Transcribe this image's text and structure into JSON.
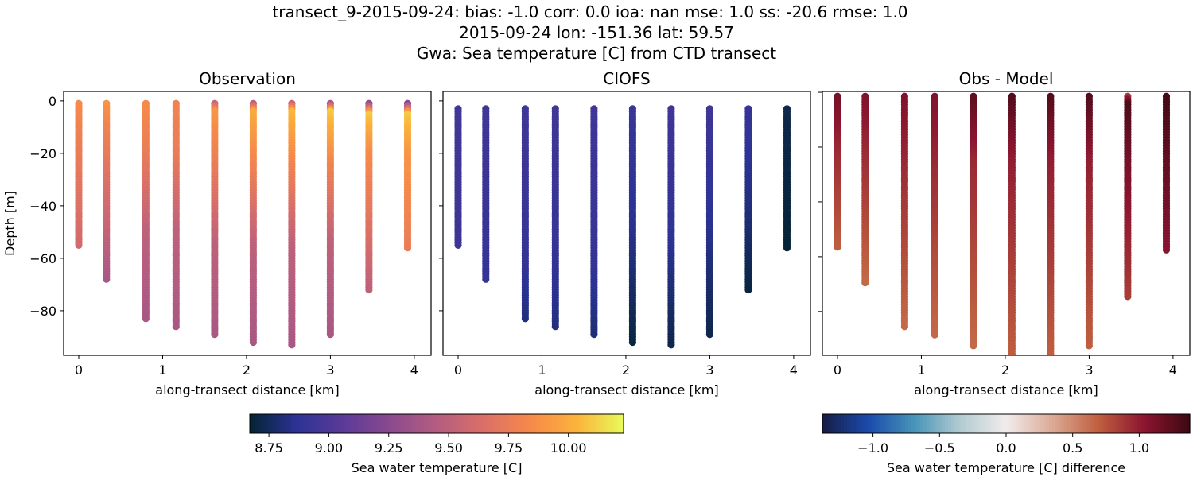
{
  "suptitle": [
    "transect_9-2015-09-24: bias: -1.0  corr: 0.0  ioa: nan  mse: 1.0  ss: -20.6  rmse: 1.0",
    "2015-09-24 lon: -151.36 lat: 59.57",
    "Gwa: Sea temperature [C] from CTD transect"
  ],
  "chart_data": [
    {
      "type": "scatter",
      "title": "Observation",
      "xlabel": "along-transect distance [km]",
      "ylabel": "Depth [m]",
      "xlim": [
        -0.18,
        4.2
      ],
      "ylim": [
        -97,
        3.6
      ],
      "xticks": [
        0,
        1,
        2,
        3,
        4
      ],
      "yticks": [
        0,
        -20,
        -40,
        -60,
        -80
      ],
      "colormap": "thermal",
      "stations": [
        {
          "x": 0.0,
          "top": -1,
          "bottom": -55,
          "profile": [
            [
              0,
              9.85
            ],
            [
              10,
              9.8
            ],
            [
              55,
              9.6
            ]
          ]
        },
        {
          "x": 0.33,
          "top": -1,
          "bottom": -68,
          "profile": [
            [
              0,
              9.9
            ],
            [
              10,
              9.8
            ],
            [
              40,
              9.6
            ],
            [
              68,
              9.4
            ]
          ]
        },
        {
          "x": 0.8,
          "top": -1,
          "bottom": -83,
          "profile": [
            [
              0,
              9.85
            ],
            [
              20,
              9.75
            ],
            [
              50,
              9.5
            ],
            [
              83,
              9.4
            ]
          ]
        },
        {
          "x": 1.16,
          "top": -1,
          "bottom": -86,
          "profile": [
            [
              0,
              9.8
            ],
            [
              20,
              9.75
            ],
            [
              50,
              9.5
            ],
            [
              86,
              9.4
            ]
          ]
        },
        {
          "x": 1.62,
          "top": -1,
          "bottom": -89,
          "profile": [
            [
              0,
              9.45
            ],
            [
              4,
              9.9
            ],
            [
              25,
              9.75
            ],
            [
              55,
              9.5
            ],
            [
              89,
              9.4
            ]
          ]
        },
        {
          "x": 2.08,
          "top": -1,
          "bottom": -92,
          "profile": [
            [
              0,
              9.35
            ],
            [
              4,
              10.0
            ],
            [
              25,
              9.8
            ],
            [
              55,
              9.5
            ],
            [
              92,
              9.4
            ]
          ]
        },
        {
          "x": 2.54,
          "top": -1,
          "bottom": -93,
          "profile": [
            [
              0,
              9.4
            ],
            [
              4,
              10.05
            ],
            [
              25,
              9.8
            ],
            [
              55,
              9.5
            ],
            [
              93,
              9.4
            ]
          ]
        },
        {
          "x": 3.0,
          "top": -1,
          "bottom": -89,
          "profile": [
            [
              0,
              9.2
            ],
            [
              4,
              10.1
            ],
            [
              25,
              9.8
            ],
            [
              55,
              9.5
            ],
            [
              89,
              9.4
            ]
          ]
        },
        {
          "x": 3.46,
          "top": -1,
          "bottom": -72,
          "profile": [
            [
              0,
              9.1
            ],
            [
              5,
              10.1
            ],
            [
              20,
              9.85
            ],
            [
              45,
              9.7
            ],
            [
              72,
              9.5
            ]
          ]
        },
        {
          "x": 3.92,
          "top": -1,
          "bottom": -56,
          "profile": [
            [
              0,
              9.05
            ],
            [
              5,
              10.1
            ],
            [
              20,
              9.9
            ],
            [
              56,
              9.75
            ]
          ]
        }
      ]
    },
    {
      "type": "scatter",
      "title": "CIOFS",
      "xlabel": "along-transect distance [km]",
      "xlim": [
        -0.18,
        4.2
      ],
      "ylim": [
        -97,
        3.6
      ],
      "xticks": [
        0,
        1,
        2,
        3,
        4
      ],
      "colormap": "thermal",
      "stations": [
        {
          "x": 0.0,
          "top": -3,
          "bottom": -55,
          "profile": [
            [
              0,
              8.95
            ],
            [
              55,
              8.93
            ]
          ]
        },
        {
          "x": 0.33,
          "top": -3,
          "bottom": -68,
          "profile": [
            [
              0,
              8.95
            ],
            [
              68,
              8.9
            ]
          ]
        },
        {
          "x": 0.8,
          "top": -3,
          "bottom": -83,
          "profile": [
            [
              0,
              8.95
            ],
            [
              60,
              8.9
            ],
            [
              83,
              8.82
            ]
          ]
        },
        {
          "x": 1.16,
          "top": -3,
          "bottom": -86,
          "profile": [
            [
              0,
              8.95
            ],
            [
              60,
              8.9
            ],
            [
              86,
              8.82
            ]
          ]
        },
        {
          "x": 1.62,
          "top": -3,
          "bottom": -89,
          "profile": [
            [
              0,
              8.95
            ],
            [
              60,
              8.9
            ],
            [
              89,
              8.8
            ]
          ]
        },
        {
          "x": 2.08,
          "top": -3,
          "bottom": -92,
          "profile": [
            [
              0,
              8.92
            ],
            [
              50,
              8.85
            ],
            [
              92,
              8.7
            ]
          ]
        },
        {
          "x": 2.54,
          "top": -3,
          "bottom": -93,
          "profile": [
            [
              0,
              8.95
            ],
            [
              50,
              8.88
            ],
            [
              93,
              8.72
            ]
          ]
        },
        {
          "x": 3.0,
          "top": -3,
          "bottom": -89,
          "profile": [
            [
              0,
              8.95
            ],
            [
              50,
              8.85
            ],
            [
              89,
              8.72
            ]
          ]
        },
        {
          "x": 3.46,
          "top": -3,
          "bottom": -72,
          "profile": [
            [
              0,
              8.92
            ],
            [
              40,
              8.82
            ],
            [
              72,
              8.7
            ]
          ]
        },
        {
          "x": 3.92,
          "top": -3,
          "bottom": -56,
          "profile": [
            [
              0,
              8.72
            ],
            [
              56,
              8.68
            ]
          ]
        }
      ]
    },
    {
      "type": "scatter",
      "title": "Obs - Model",
      "xlabel": "along-transect distance [km]",
      "xlim": [
        -0.18,
        4.2
      ],
      "ylim": [
        -96,
        0.3
      ],
      "xticks": [
        0,
        1,
        2,
        3,
        4
      ],
      "colormap": "balance",
      "stations": [
        {
          "x": 0.0,
          "top": -1.5,
          "bottom": -57,
          "profile": [
            [
              0,
              1.15
            ],
            [
              20,
              0.95
            ],
            [
              57,
              0.7
            ]
          ]
        },
        {
          "x": 0.33,
          "top": -1.5,
          "bottom": -70,
          "profile": [
            [
              0,
              1.1
            ],
            [
              20,
              0.95
            ],
            [
              70,
              0.65
            ]
          ]
        },
        {
          "x": 0.8,
          "top": -1.5,
          "bottom": -86,
          "profile": [
            [
              0,
              1.1
            ],
            [
              25,
              0.95
            ],
            [
              86,
              0.65
            ]
          ]
        },
        {
          "x": 1.16,
          "top": -1.5,
          "bottom": -89,
          "profile": [
            [
              0,
              1.1
            ],
            [
              25,
              0.95
            ],
            [
              89,
              0.65
            ]
          ]
        },
        {
          "x": 1.62,
          "top": -1.5,
          "bottom": -93,
          "profile": [
            [
              0,
              1.25
            ],
            [
              25,
              0.95
            ],
            [
              93,
              0.65
            ]
          ]
        },
        {
          "x": 2.08,
          "top": -1.5,
          "bottom": -96,
          "profile": [
            [
              0,
              1.3
            ],
            [
              25,
              1.0
            ],
            [
              96,
              0.7
            ]
          ]
        },
        {
          "x": 2.54,
          "top": -1.5,
          "bottom": -96,
          "profile": [
            [
              0,
              1.3
            ],
            [
              25,
              1.0
            ],
            [
              96,
              0.7
            ]
          ]
        },
        {
          "x": 3.0,
          "top": -1.5,
          "bottom": -93,
          "profile": [
            [
              0,
              1.3
            ],
            [
              25,
              1.0
            ],
            [
              93,
              0.7
            ]
          ]
        },
        {
          "x": 3.46,
          "top": -1.5,
          "bottom": -75,
          "profile": [
            [
              0,
              0.6
            ],
            [
              4,
              1.3
            ],
            [
              30,
              1.1
            ],
            [
              75,
              0.85
            ]
          ]
        },
        {
          "x": 3.92,
          "top": -1.5,
          "bottom": -58,
          "profile": [
            [
              0,
              1.35
            ],
            [
              30,
              1.2
            ],
            [
              58,
              1.05
            ]
          ]
        }
      ]
    }
  ],
  "colorbars": [
    {
      "label": "Sea water temperature [C]",
      "range": [
        8.67,
        10.23
      ],
      "ticks": [
        "8.75",
        "9.00",
        "9.25",
        "9.50",
        "9.75",
        "10.00"
      ],
      "colormap": "thermal"
    },
    {
      "label": "Sea water temperature [C] difference",
      "range": [
        -1.38,
        1.38
      ],
      "ticks": [
        "−1.0",
        "−0.5",
        "0.0",
        "0.5",
        "1.0"
      ],
      "colormap": "balance"
    }
  ],
  "colormaps": {
    "thermal": [
      "#042333",
      "#2c3395",
      "#5b3a99",
      "#8a4a8e",
      "#b45d80",
      "#da6f68",
      "#f6894a",
      "#fbb33b",
      "#e8fa5b"
    ],
    "balance": [
      "#181c43",
      "#1a4bad",
      "#4794b8",
      "#b3cbd1",
      "#f1ecec",
      "#dcaa96",
      "#c06040",
      "#8c1530",
      "#3c0912"
    ]
  }
}
